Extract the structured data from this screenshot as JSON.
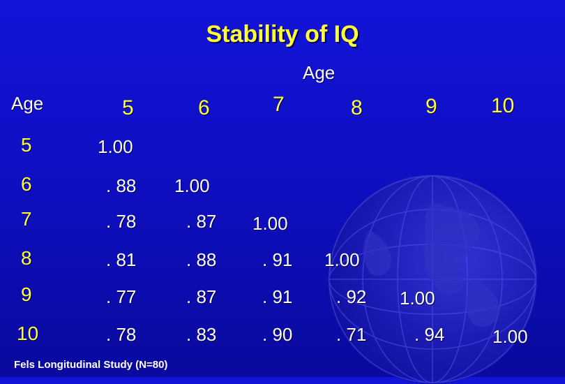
{
  "title": "Stability of IQ",
  "column_axis_label": "Age",
  "row_axis_label": "Age",
  "columns": [
    "5",
    "6",
    "7",
    "8",
    "9",
    "10"
  ],
  "rows": [
    {
      "age": "5",
      "values": [
        "1.00"
      ]
    },
    {
      "age": "6",
      "values": [
        ". 88",
        "1.00"
      ]
    },
    {
      "age": "7",
      "values": [
        ". 78",
        ". 87",
        "1.00"
      ]
    },
    {
      "age": "8",
      "values": [
        ". 81",
        ". 88",
        ". 91",
        "1.00"
      ]
    },
    {
      "age": "9",
      "values": [
        ". 77",
        ". 87",
        ". 91",
        ". 92",
        "1.00"
      ]
    },
    {
      "age": "10",
      "values": [
        ". 78",
        ". 83",
        ". 90",
        ". 71",
        ". 94",
        "1.00"
      ]
    }
  ],
  "footnote": "Fels Longitudinal Study (N=80)",
  "colors": {
    "background": "#1414d8",
    "accent": "#ffff33",
    "text": "#ffffff"
  }
}
